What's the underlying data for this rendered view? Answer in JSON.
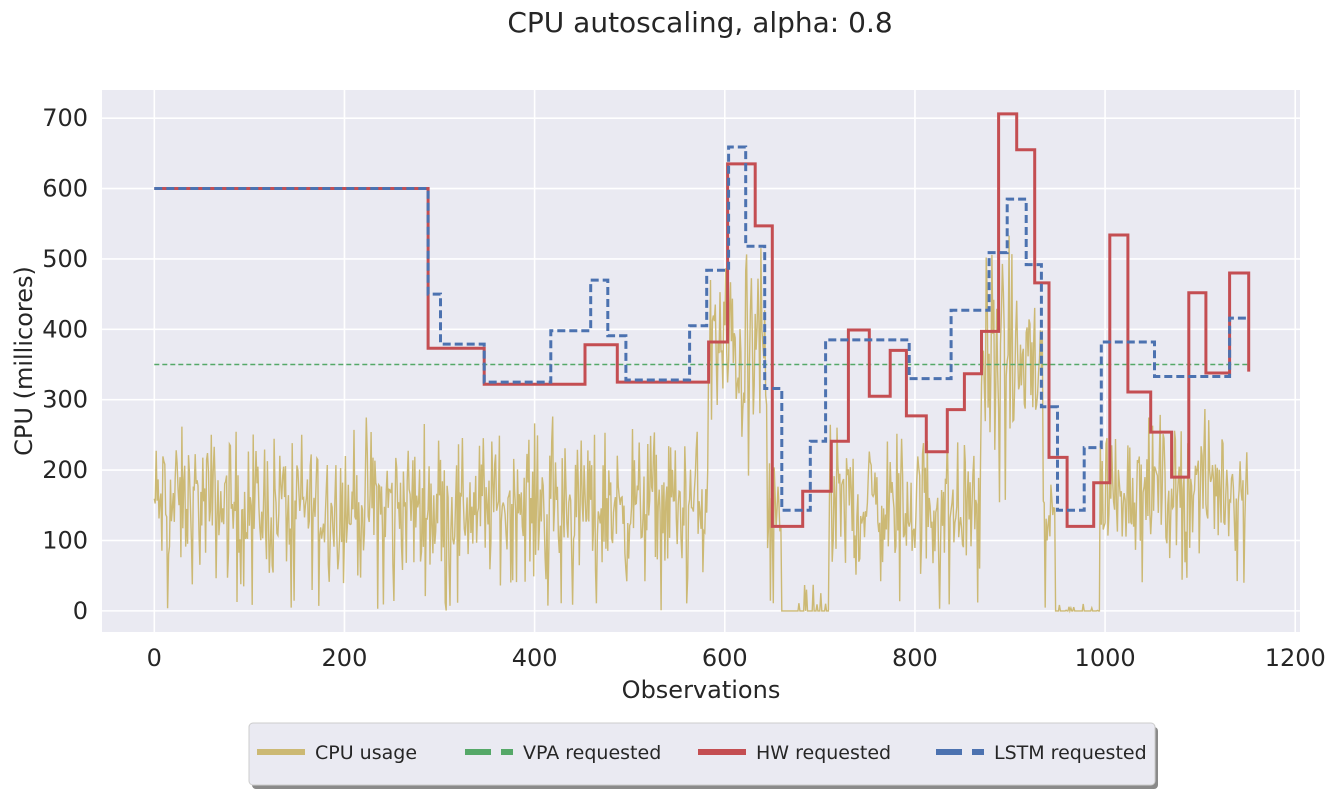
{
  "chart_data": {
    "type": "line",
    "title": "CPU autoscaling, alpha: 0.8",
    "xlabel": "Observations",
    "ylabel": "CPU (millicores)",
    "xlim": [
      -55,
      1205
    ],
    "ylim": [
      -30,
      740
    ],
    "xticks": [
      0,
      200,
      400,
      600,
      800,
      1000,
      1200
    ],
    "yticks": [
      0,
      100,
      200,
      300,
      400,
      500,
      600,
      700
    ],
    "grid": true,
    "legend_position": "bottom-center",
    "series": [
      {
        "name": "CPU usage",
        "style": "solid",
        "color": "#ccb974",
        "width": 1.4,
        "baseline_segments": [
          {
            "x": [
              0,
              583
            ],
            "lo": 0,
            "hi": 300,
            "mean": 180
          },
          {
            "x": [
              583,
              645
            ],
            "lo": 180,
            "hi": 560,
            "mean": 400
          },
          {
            "x": [
              645,
              660
            ],
            "lo": 0,
            "hi": 250,
            "mean": 80
          },
          {
            "x": [
              660,
              710
            ],
            "lo": 0,
            "hi": 40,
            "mean": 0
          },
          {
            "x": [
              710,
              870
            ],
            "lo": 0,
            "hi": 300,
            "mean": 160
          },
          {
            "x": [
              870,
              935
            ],
            "lo": 150,
            "hi": 560,
            "mean": 400
          },
          {
            "x": [
              935,
              948
            ],
            "lo": 0,
            "hi": 250,
            "mean": 80
          },
          {
            "x": [
              948,
              995
            ],
            "lo": 0,
            "hi": 10,
            "mean": 0
          },
          {
            "x": [
              995,
              1151
            ],
            "lo": 40,
            "hi": 310,
            "mean": 170
          }
        ]
      },
      {
        "name": "VPA requested",
        "style": "dashed",
        "color": "#55a868",
        "width": 1.4,
        "x": [
          0,
          1151
        ],
        "y": [
          350,
          350
        ]
      },
      {
        "name": "HW requested",
        "style": "solid",
        "color": "#c44e52",
        "width": 3,
        "steps": [
          [
            0,
            600
          ],
          [
            288,
            373
          ],
          [
            347,
            322
          ],
          [
            453,
            378
          ],
          [
            487,
            325
          ],
          [
            583,
            382
          ],
          [
            603,
            635
          ],
          [
            632,
            547
          ],
          [
            650,
            120
          ],
          [
            682,
            170
          ],
          [
            712,
            241
          ],
          [
            730,
            399
          ],
          [
            752,
            305
          ],
          [
            774,
            370
          ],
          [
            791,
            277
          ],
          [
            812,
            226
          ],
          [
            834,
            286
          ],
          [
            852,
            337
          ],
          [
            870,
            397
          ],
          [
            888,
            706
          ],
          [
            907,
            655
          ],
          [
            926,
            466
          ],
          [
            941,
            218
          ],
          [
            960,
            120
          ],
          [
            988,
            182
          ],
          [
            1005,
            534
          ],
          [
            1024,
            311
          ],
          [
            1048,
            254
          ],
          [
            1070,
            190
          ],
          [
            1088,
            452
          ],
          [
            1106,
            338
          ],
          [
            1131,
            480
          ],
          [
            1151,
            340
          ]
        ]
      },
      {
        "name": "LSTM requested",
        "style": "dashed",
        "color": "#4c72b0",
        "width": 3,
        "steps": [
          [
            0,
            600
          ],
          [
            288,
            450
          ],
          [
            301,
            379
          ],
          [
            347,
            325
          ],
          [
            417,
            398
          ],
          [
            459,
            470
          ],
          [
            477,
            391
          ],
          [
            496,
            328
          ],
          [
            563,
            405
          ],
          [
            581,
            484
          ],
          [
            604,
            659
          ],
          [
            622,
            518
          ],
          [
            642,
            316
          ],
          [
            660,
            143
          ],
          [
            690,
            241
          ],
          [
            706,
            385
          ],
          [
            794,
            330
          ],
          [
            838,
            427
          ],
          [
            878,
            509
          ],
          [
            897,
            585
          ],
          [
            917,
            492
          ],
          [
            933,
            290
          ],
          [
            950,
            143
          ],
          [
            978,
            232
          ],
          [
            996,
            382
          ],
          [
            1052,
            333
          ],
          [
            1131,
            416
          ],
          [
            1151,
            416
          ]
        ]
      }
    ]
  }
}
